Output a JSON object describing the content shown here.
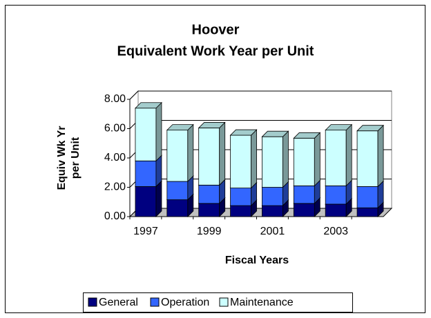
{
  "chart_data": {
    "type": "bar3d_stacked",
    "title": [
      "Hoover",
      "Equivalent Work Year per Unit"
    ],
    "y_label": [
      "Equiv Wk Yr",
      "per Unit"
    ],
    "x_label": "Fiscal Years",
    "categories": [
      "1997",
      null,
      "1999",
      null,
      "2001",
      null,
      "2003",
      null
    ],
    "series": [
      {
        "name": "General",
        "color": "#000080",
        "values": [
          2.05,
          1.15,
          0.9,
          0.75,
          0.75,
          0.9,
          0.85,
          0.6
        ]
      },
      {
        "name": "Operation",
        "color": "#3366ff",
        "values": [
          1.75,
          1.25,
          1.25,
          1.2,
          1.25,
          1.2,
          1.25,
          1.45
        ]
      },
      {
        "name": "Maintenance",
        "color": "#ccffff",
        "values": [
          3.6,
          3.5,
          3.9,
          3.6,
          3.45,
          3.25,
          3.8,
          3.8
        ]
      }
    ],
    "ylim": [
      0,
      8
    ],
    "yticks": [
      {
        "value": 0,
        "label": "0.00"
      },
      {
        "value": 2,
        "label": "2.00"
      },
      {
        "value": 4,
        "label": "4.00"
      },
      {
        "value": 6,
        "label": "6.00"
      },
      {
        "value": 8,
        "label": "8.00"
      }
    ],
    "grid": true,
    "legend": "bottom"
  }
}
